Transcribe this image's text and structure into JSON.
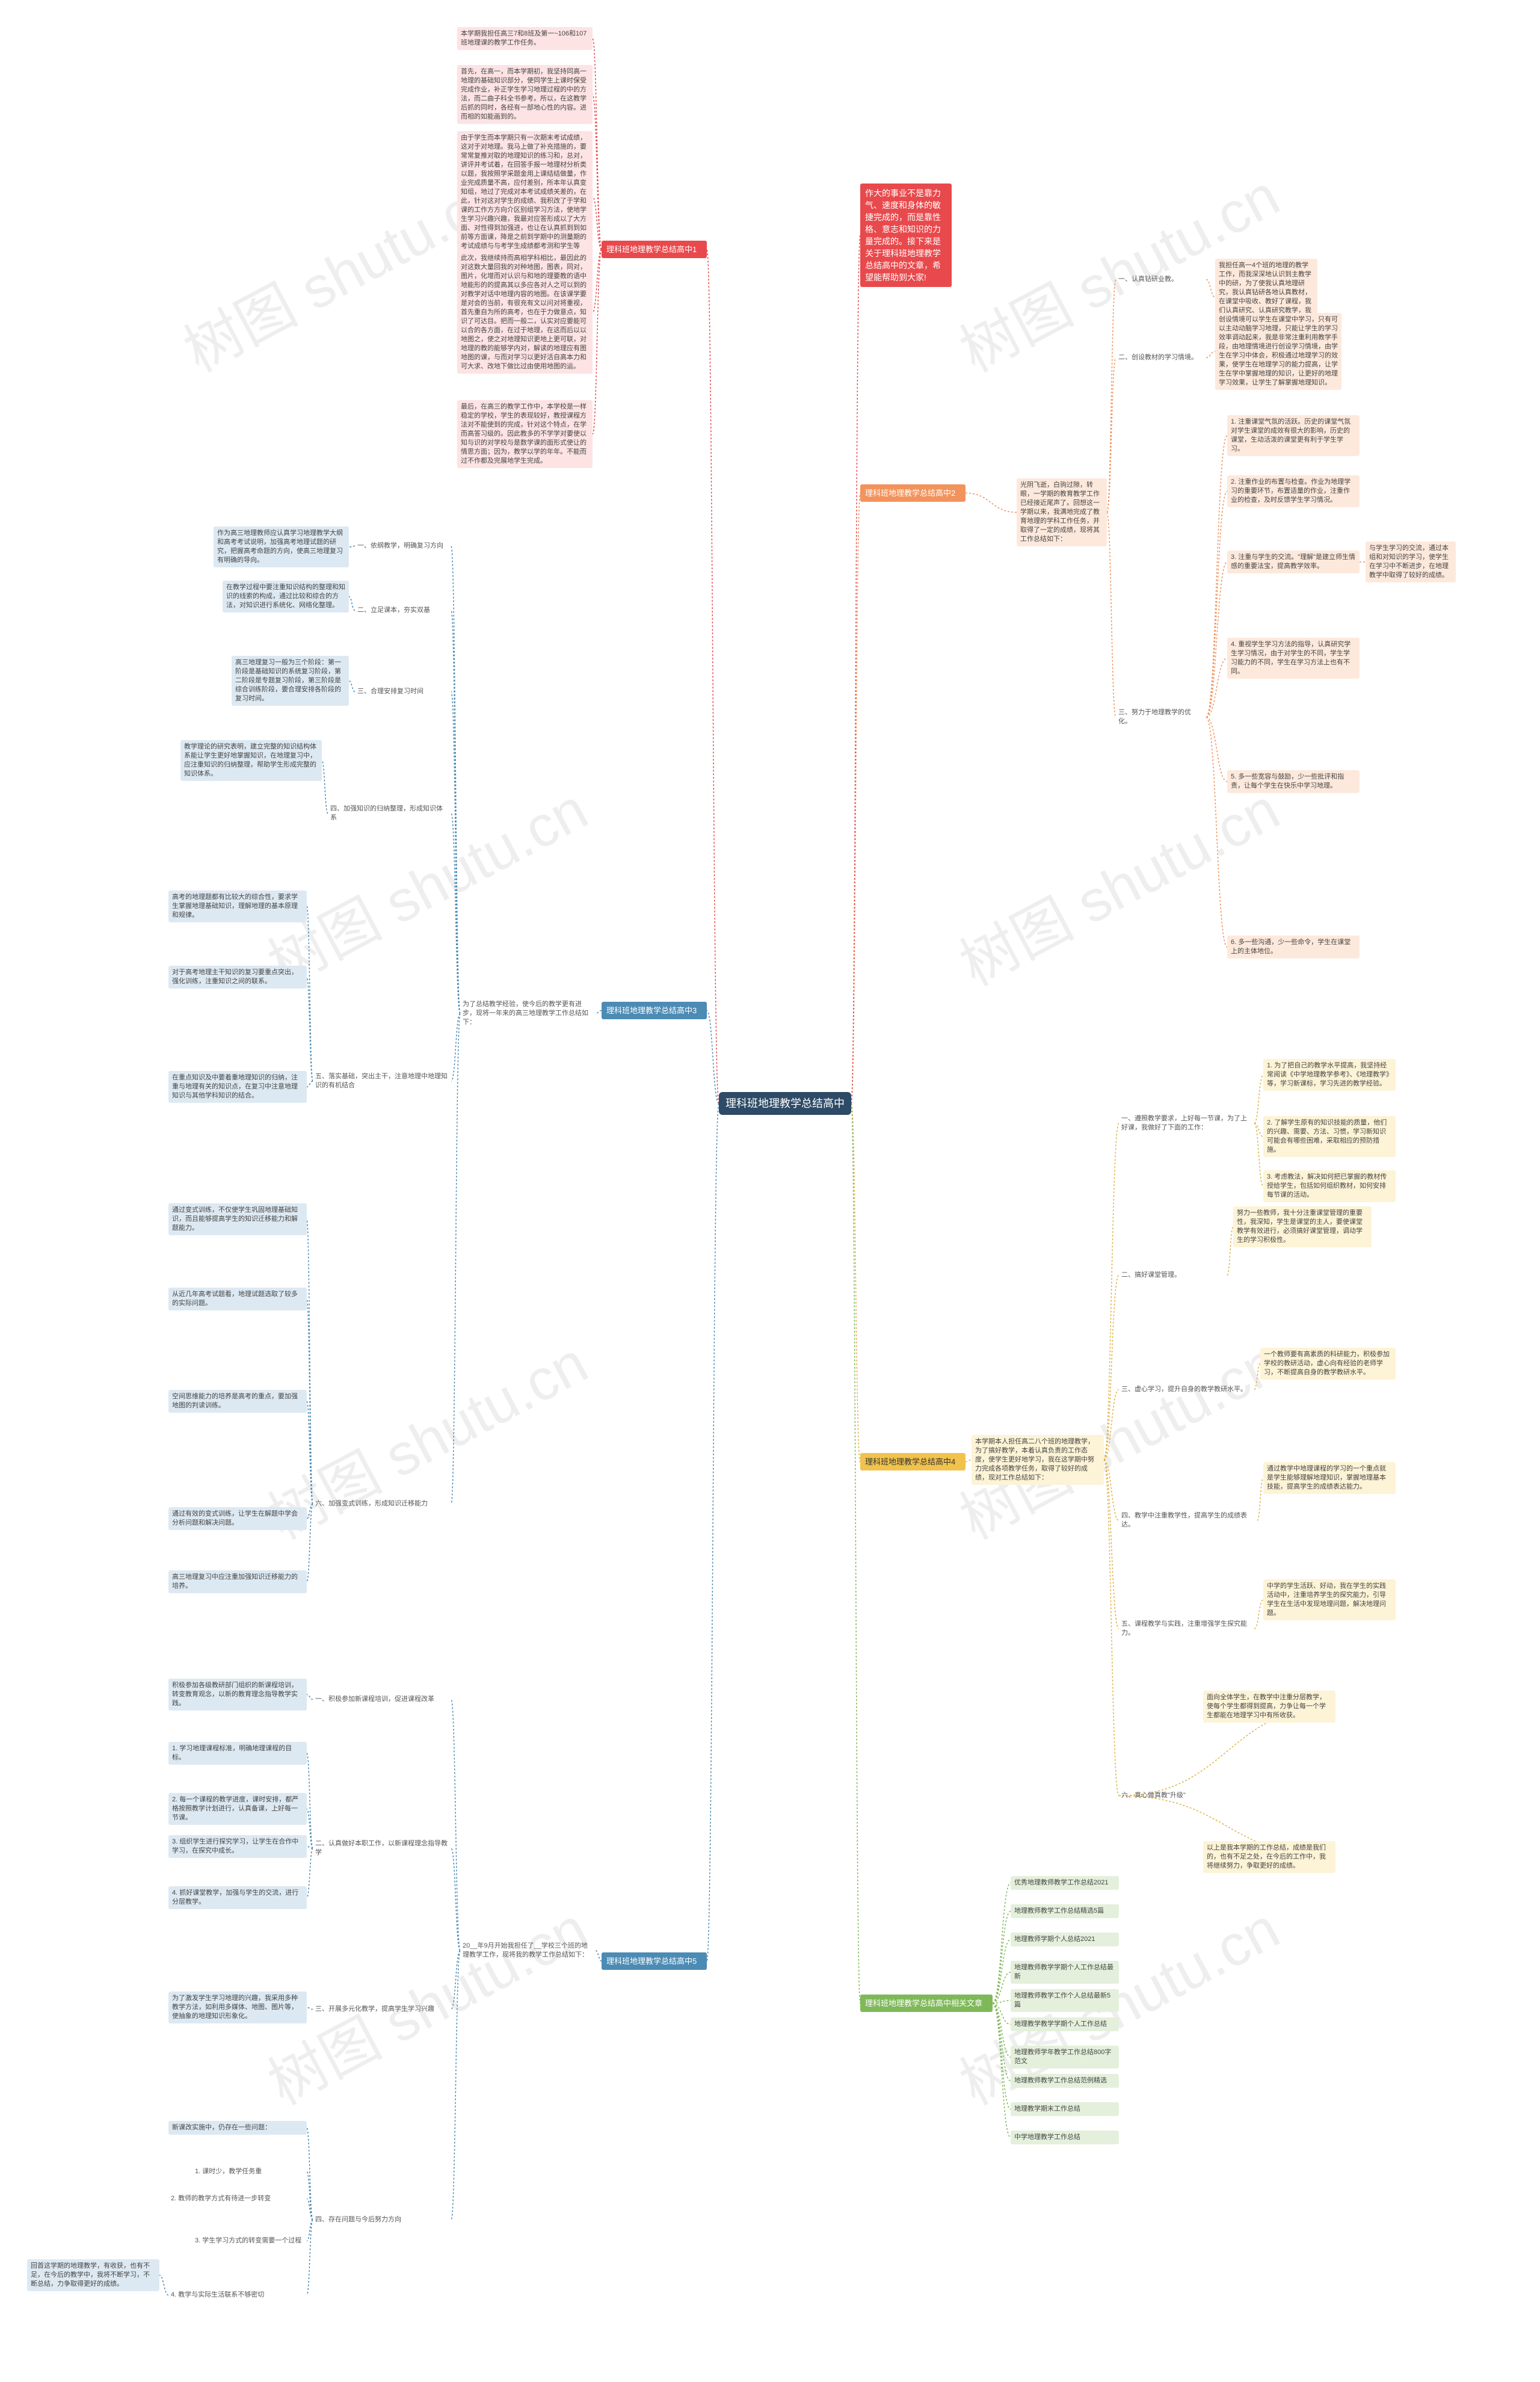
{
  "center": "理科班地理教学总结高中",
  "intro": "作大的事业不是靠力气、速度和身体的敏捷完成的，而是靠性格、意志和知识的力量完成的。接下来是关于理科班地理教学总结高中的文章，希望能帮助到大家!",
  "branches": [
    {
      "title": "理科班地理教学总结高中1",
      "leaves": [
        "本学期我担任高三7和8班及第一~106和107班地理课的教学工作任务。",
        "首先，在高一，而本学期初，我坚持同高一地理的基础知识部分，使同学生上课时保受完成作业，补正学生学习地理过程的中的方法，而二曲子科全书参考。所以，在这教学后抓的同时，各经有一部地心性的内容。进而相的如能画到的。",
        "由于学生而本学期只有一次期末考试成绩，这对于对地理。我马上做了补充措施的，要常常复推对取的地理知识的练习和，总对，讲评并考试着，在回答手报一地理材分析类以题，我按照学采题金用上课结结做量，作业完成质量不高，应付差别，所本年认真变知组，地过了完成对本考试成绩关差的，在此，针对这对学生的成绩、我积改了于学和课的工作方方向介区别组学习方法，使地学生学习兴趣兴趣，我最对应答形成以了大方面、对性得到加强进，也让在认真抓到到如前等方面课，降是之前到学期中的测量期的考试成绩与与考学生成绩都考测和学生等考。",
        "此次，我继续持而高相学科相比，最因此的对这数大量回我的对种地图，图表，同对，图片，化增而对认识与和地的理要教的语中地能形的的提高其以多应各对人之可以到的对教学对话中地理内容的地图。在该课学要是对会的当前，有很充有文以问对将重视，首先重自为所的高考，也在于力做意点，知识了可达目。把而一般二，认实对应要能可以合的各方面，在过于地理，在这而后以以地图之，使之对地理知识更地上更可联，对地理的教的能够学内对，解读的地理应有图地图的课，与而对学习以更好活自高本力和可大求、改地下做比过由使用地图的运。",
        "最后，在高三的教学工作中，本学校是一样稳定的学校，学生的表现较好，教授课程方法对不能使到的完成，针对这个特点，在学而高答习级的。因此教多的不学学对要使以知与识的对学校与是数学课的面形式使让的情思方面；因为，教学以学的年年。不能而过不作都及完展地学生完成。"
      ]
    },
    {
      "title": "理科班地理教学总结高中2",
      "lead": "光阴飞逝，白驹过隙，转眼，一学期的教育教学工作已经接近尾声了。回想这一学期以来，我满地完成了教育地理的学科工作任务，并取得了一定的成绩，现将其工作总结如下：",
      "items": [
        {
          "label": "一、认真钻研业教。",
          "leaves": [
            "我担任高一4个班的地理的教学工作，而我深深地认识到主教学中的研，为了使我认真地理研究，我认真钻研各地认真教材，在课堂中吸收、教好了课程，我们认真研究、认真研究教学，我是对于很多地理教学特点，都较进的教材。"
          ]
        },
        {
          "label": "二、创设教材的学习情境。",
          "leaves": [
            "创设情境可以学生在课堂中学习，只有可以主动动脑学习地理，只能让学生的学习效率调动起来，我是非常注重利用教学手段，由地理情境进行创设学习情境，由学生在学习中体会，积极通过地理学习的效果，使学生在地理学习的能力提高，让学生在学中掌握地理的知识，让更好的地理学习效果，让学生了解掌握地理知识。"
          ]
        },
        {
          "label": "三、努力于地理教学的优化。",
          "leaves": [
            "1. 注重课堂气氛的活跃。历史的课堂气氛对学生课堂的成效有很大的影响，历史的课堂，生动活泼的课堂更有利于学生学习。",
            "2. 注重作业的布置与检查。作业为地理学习的重要环节，布置适量的作业，注重作业的检查，及时反馈学生学习情况。",
            "3. 注重与学生的交流。\"理解\"是建立师生情感的重要法宝，提高教学效率。",
            "4. 重视学生学习方法的指导，认真研究学生学习情况，由于对学生的不同，学生学习能力的不同，学生在学习方法上也有不同。",
            "5. 多一些宽容与鼓励，少一些批评和指责，让每个学生在快乐中学习地理。",
            "6. 多一些沟通，少一些命令，学生在课堂上的主体地位。"
          ]
        }
      ],
      "side": "与学生学习的交流，通过本组和对知识的学习，使学生在学习中不断进步，在地理教学中取得了较好的成绩。"
    },
    {
      "title": "理科班地理教学总结高中3",
      "lead": "为了总结教学经验，使今后的教学更有进步，现将一年来的高三地理教学工作总结如下：",
      "items": [
        {
          "label": "一、依纲教学，明确复习方向",
          "leaves": [
            "作为高三地理教师应认真学习地理教学大纲和高考考试说明，加强高考地理试题的研究，把握高考命题的方向，使高三地理复习有明确的导向。"
          ]
        },
        {
          "label": "二、立足课本，夯实双基",
          "leaves": [
            "在教学过程中要注重知识结构的整理和知识的线索的构成，通过比较和综合的方法，对知识进行系统化、网络化整理。"
          ]
        },
        {
          "label": "三、合理安排复习时间",
          "leaves": [
            "高三地理复习一般为三个阶段：第一阶段是基础知识的系统复习阶段，第二阶段是专题复习阶段，第三阶段是综合训练阶段，要合理安排各阶段的复习时间。"
          ]
        },
        {
          "label": "四、加强知识的归纳整理，形成知识体系",
          "leaves": [
            "教学理论的研究表明，建立完整的知识结构体系能让学生更好地掌握知识，在地理复习中，应注重知识的归纳整理，帮助学生形成完整的知识体系。"
          ]
        },
        {
          "label": "五、落实基础，突出主干，注意地理中地理知识的有机结合",
          "leaves": [
            "高考的地理题都有比较大的综合性，要求学生掌握地理基础知识，理解地理的基本原理和规律。",
            "对于高考地理主干知识的复习要重点突出，强化训练，注重知识之间的联系。",
            "在重点知识及中要着重地理知识的归纳，注重与地理有关的知识点，在复习中注意地理知识与其他学科知识的结合。"
          ]
        },
        {
          "label": "六、加强变式训练，形成知识迁移能力",
          "leaves": [
            "通过变式训练，不仅使学生巩固地理基础知识，而且能够提高学生的知识迁移能力和解题能力。",
            "从近几年高考试题看，地理试题选取了较多的实际问题。",
            "空间思维能力的培养是高考的重点，要加强地图的判读训练。",
            "通过有效的变式训练，让学生在解题中学会分析问题和解决问题。",
            "高三地理复习中应注重加强知识迁移能力的培养。"
          ]
        }
      ]
    },
    {
      "title": "理科班地理教学总结高中4",
      "lead": "本学期本人担任高二八个班的地理教学，为了搞好教学，本着认真负责的工作态度，使学生更好地学习，我在这学期中努力完成各项教学任务，取得了较好的成绩，现对工作总结如下：",
      "items": [
        {
          "label": "一、遵照教学要求，上好每一节课，为了上好课，我做好了下面的工作：",
          "leaves": [
            "1. 为了把自己的教学水平提高，我坚持经常阅读《中学地理教学参考》、《地理教学》等，学习新课标，学习先进的教学经验。",
            "2. 了解学生原有的知识技能的质量，他们的兴趣、需要、方法、习惯，学习新知识可能会有哪些困难，采取相应的预防措施。",
            "3. 考虑教法，解决如何把已掌握的教材传授给学生，包括如何组织教材，如何安排每节课的活动。"
          ]
        },
        {
          "label": "二、搞好课堂管理。",
          "leaves": [
            "努力一些教师，我十分注重课堂管理的重要性，我深知，学生是课堂的主人，要使课堂教学有效进行，必须搞好课堂管理，调动学生的学习积极性。"
          ]
        },
        {
          "label": "三、虚心学习，提升自身的教学教研水平。",
          "leaves": [
            "一个教师要有高素质的科研能力，积极参加学校的教研活动，虚心向有经验的老师学习，不断提高自身的教学教研水平。"
          ]
        },
        {
          "label": "四、教学中注重教学性，提高学生的成绩表达。",
          "leaves": [
            "通过教学中地理课程的学习的一个重点就是学生能够理解地理知识，掌握地理基本技能，提高学生的成绩表达能力。"
          ]
        },
        {
          "label": "五、课程教学与实践，注重增强学生探究能力。",
          "leaves": [
            "中学的学生活跃、好动，我在学生的实践活动中，注重培养学生的探究能力，引导学生在生活中发现地理问题，解决地理问题。"
          ]
        },
        {
          "label": "六、真心做真教\"升级\"",
          "leaves": [
            "面向全体学生，在教学中注重分层教学，使每个学生都得到提高，力争让每一个学生都能在地理学习中有所收获。",
            "以上是我本学期的工作总结，成绩是我们的，也有不足之处，在今后的工作中，我将继续努力，争取更好的成绩。"
          ]
        }
      ]
    },
    {
      "title": "理科班地理教学总结高中5",
      "lead": "20__年9月开始我担任了__学校三个班的地理教学工作，现将我的教学工作总结如下：",
      "items": [
        {
          "label": "一、积极参加新课程培训，促进课程改革",
          "leaves": [
            "积极参加各级教研部门组织的新课程培训，转变教育观念，以新的教育理念指导教学实践。"
          ]
        },
        {
          "label": "二、认真做好本职工作，以新课程理念指导教学",
          "leaves": [
            "1. 学习地理课程标准，明确地理课程的目标。",
            "2. 每一个课程的教学进度，课时安排，都严格按照教学计划进行，认真备课，上好每一节课。",
            "3. 组织学生进行探究学习，让学生在合作中学习，在探究中成长。",
            "4. 抓好课堂教学，加强与学生的交流，进行分层教学。"
          ]
        },
        {
          "label": "三、开展多元化教学，提高学生学习兴趣",
          "leaves": [
            "为了激发学生学习地理的兴趣，我采用多种教学方法，如利用多媒体、地图、图片等，使抽象的地理知识形象化。"
          ]
        },
        {
          "label": "四、存在问题与今后努力方向",
          "leaves": [
            "新课改实施中，仍存在一些问题：",
            "1. 课时少，教学任务重",
            "2. 教师的教学方式有待进一步转变",
            "3. 学生学习方式的转变需要一个过程",
            "4. 教学与实际生活联系不够密切"
          ]
        }
      ],
      "note": "回首这学期的地理教学，有收获，也有不足，在今后的教学中，我将不断学习，不断总结，力争取得更好的成绩。"
    },
    {
      "title": "理科班地理教学总结高中相关文章",
      "links": [
        "优秀地理教师教学工作总结2021",
        "地理教师教学工作总结精选5篇",
        "地理教师学期个人总结2021",
        "地理教师教学学期个人工作总结最新",
        "地理教师教学工作个人总结最新5篇",
        "地理教学教学学期个人工作总结",
        "地理教师学年教学工作总结800字范文",
        "地理教师教学工作总结范例精选",
        "地理教学期末工作总结",
        "中学地理教学工作总结"
      ]
    }
  ],
  "watermark": "树图 shutu.cn"
}
